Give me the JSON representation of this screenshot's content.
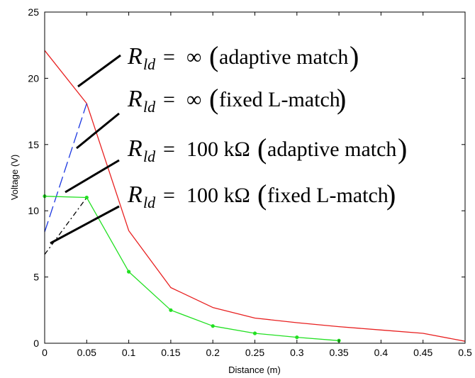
{
  "chart_data": {
    "type": "line",
    "xlabel": "Distance (m)",
    "ylabel": "Voltage (V)",
    "xlim": [
      0,
      0.5
    ],
    "ylim": [
      0,
      25
    ],
    "xticks": [
      0,
      0.05,
      0.1,
      0.15,
      0.2,
      0.25,
      0.3,
      0.35,
      0.4,
      0.45,
      0.5
    ],
    "xtick_labels": [
      "0",
      "0.05",
      "0.1",
      "0.15",
      "0.2",
      "0.25",
      "0.3",
      "0.35",
      "0.4",
      "0.45",
      "0.5"
    ],
    "yticks": [
      0,
      5,
      10,
      15,
      20,
      25
    ],
    "ytick_labels": [
      "0",
      "5",
      "10",
      "15",
      "20",
      "25"
    ],
    "grid": false,
    "series": [
      {
        "color": "#e82020",
        "dash": "solid",
        "markers": false,
        "x": [
          0,
          0.05,
          0.1,
          0.15,
          0.2,
          0.25,
          0.3,
          0.35,
          0.4,
          0.45,
          0.5
        ],
        "y": [
          22.1,
          18.1,
          8.5,
          4.2,
          2.7,
          1.9,
          1.55,
          1.25,
          1.0,
          0.75,
          0.15
        ]
      },
      {
        "color": "#1a36e0",
        "dash": "dashed",
        "markers": false,
        "x": [
          0,
          0.05
        ],
        "y": [
          8.4,
          18.1
        ]
      },
      {
        "color": "#000000",
        "dash": "dashdot",
        "markers": false,
        "x": [
          0,
          0.05
        ],
        "y": [
          6.7,
          11.0
        ]
      },
      {
        "color": "#22e022",
        "dash": "solid",
        "markers": true,
        "x": [
          0,
          0.05,
          0.1,
          0.15,
          0.2,
          0.25,
          0.3,
          0.35
        ],
        "y": [
          11.1,
          11.0,
          5.4,
          2.5,
          1.3,
          0.75,
          0.45,
          0.2
        ]
      }
    ],
    "annotations": [
      {
        "r": "R",
        "sub": "ld",
        "eq": "=",
        "value": "∞",
        "open": "(",
        "label": "adaptive match",
        "close": ")"
      },
      {
        "r": "R",
        "sub": "ld",
        "eq": "=",
        "value": "∞",
        "open": "(",
        "label": "fixed L-match",
        "close": ")"
      },
      {
        "r": "R",
        "sub": "ld",
        "eq": "=",
        "value": "100 kΩ",
        "open": "(",
        "label": "adaptive match",
        "close": ")"
      },
      {
        "r": "R",
        "sub": "ld",
        "eq": "=",
        "value": "100 kΩ",
        "open": "(",
        "label": "fixed L-match",
        "close": ")"
      }
    ]
  }
}
